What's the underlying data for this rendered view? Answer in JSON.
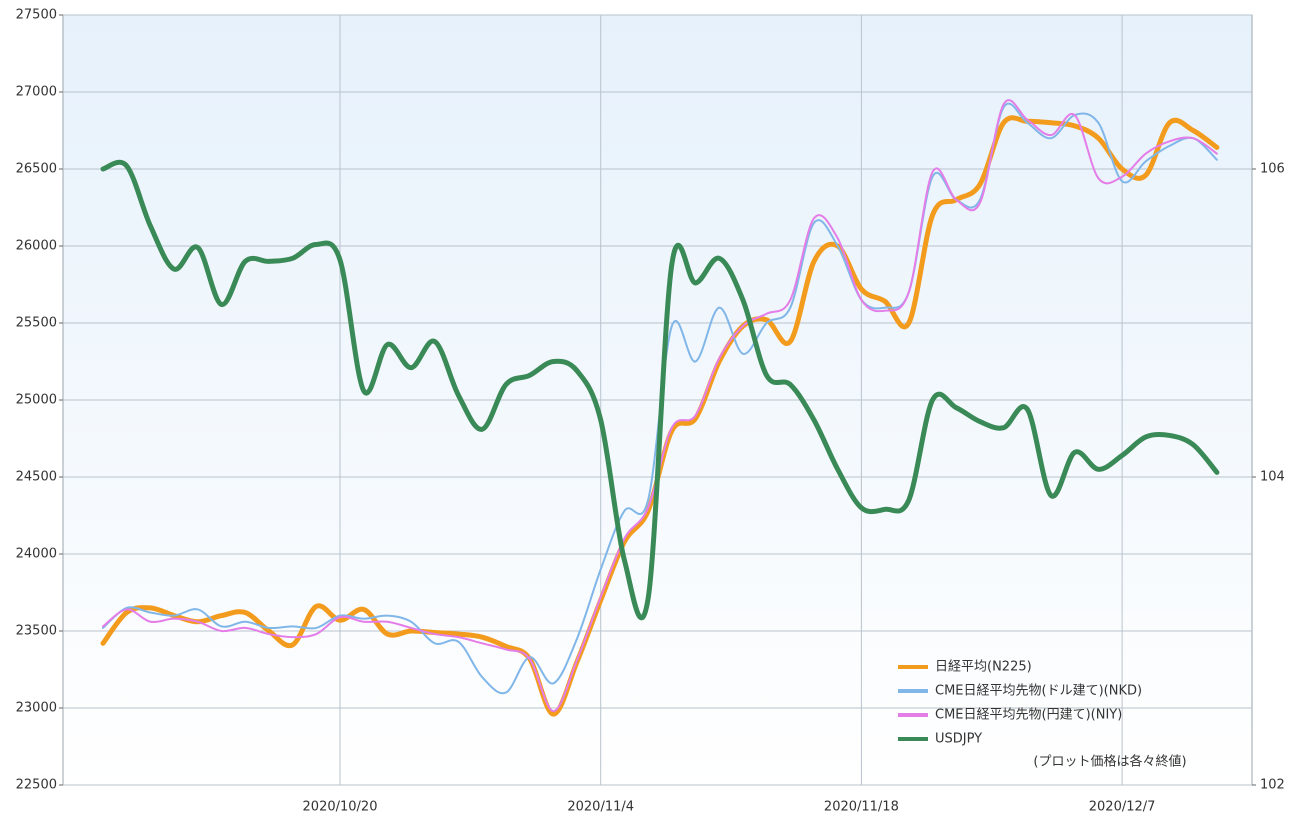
{
  "chart_data": {
    "type": "line",
    "categories": [
      null,
      null,
      null,
      null,
      null,
      null,
      null,
      null,
      null,
      null,
      "2020/10/20",
      null,
      null,
      null,
      null,
      null,
      null,
      null,
      null,
      null,
      null,
      "2020/11/4",
      null,
      null,
      null,
      null,
      null,
      null,
      null,
      null,
      null,
      null,
      "2020/11/18",
      null,
      null,
      null,
      null,
      null,
      null,
      null,
      null,
      null,
      null,
      "2020/12/7",
      null,
      null,
      null,
      null
    ],
    "ylim": [
      22500,
      27500
    ],
    "yticks": [
      22500,
      23000,
      23500,
      24000,
      24500,
      25000,
      25500,
      26000,
      26500,
      27000,
      27500
    ],
    "y2lim": [
      102,
      107
    ],
    "y2ticks": [
      102,
      104,
      106
    ],
    "grid": true,
    "legend": "lower right",
    "note": "(プロット価格は各々終値)",
    "series": [
      {
        "name": "日経平均(N225)",
        "color": "#f29b1d",
        "values": [
          23420,
          23620,
          23650,
          23600,
          23560,
          23600,
          23620,
          23500,
          23410,
          23660,
          23570,
          23640,
          23480,
          23500,
          23490,
          23480,
          23460,
          23400,
          23320,
          22960,
          23300,
          23700,
          24080,
          24280,
          24800,
          24880,
          25250,
          25480,
          25520,
          25380,
          25900,
          26000,
          25720,
          25640,
          25500,
          26200,
          26300,
          26400,
          26800,
          26810,
          26800,
          26780,
          26700,
          26500,
          26460,
          26800,
          26750,
          26640
        ]
      },
      {
        "name": "CME日経平均先物(ドル建て)(NKD)",
        "color": "#80b6e8",
        "values": [
          23520,
          23650,
          23620,
          23600,
          23640,
          23530,
          23560,
          23520,
          23530,
          23520,
          23600,
          23580,
          23600,
          23560,
          23420,
          23430,
          23200,
          23100,
          23330,
          23160,
          23450,
          23900,
          24280,
          24350,
          25480,
          25250,
          25600,
          25300,
          25500,
          25600,
          26150,
          26000,
          25650,
          25600,
          25700,
          26450,
          26300,
          26300,
          26900,
          26800,
          26700,
          26850,
          26800,
          26420,
          26550,
          26650,
          26700,
          26560
        ]
      },
      {
        "name": "CME日経平均先物(円建て)(NIY)",
        "color": "#e47de8",
        "values": [
          23530,
          23640,
          23560,
          23580,
          23560,
          23500,
          23520,
          23480,
          23460,
          23480,
          23590,
          23560,
          23560,
          23520,
          23480,
          23460,
          23420,
          23380,
          23320,
          22980,
          23310,
          23720,
          24100,
          24300,
          24820,
          24900,
          25270,
          25480,
          25560,
          25650,
          26180,
          26050,
          25650,
          25580,
          25700,
          26480,
          26300,
          26280,
          26920,
          26820,
          26720,
          26850,
          26440,
          26450,
          26600,
          26680,
          26700,
          26600
        ]
      },
      {
        "name": "USDJPY",
        "color": "#3a8a57",
        "axis": "y2",
        "values": [
          106.0,
          106.02,
          105.63,
          105.35,
          105.49,
          105.12,
          105.4,
          105.4,
          105.42,
          105.51,
          105.41,
          104.56,
          104.86,
          104.71,
          104.88,
          104.53,
          104.31,
          104.6,
          104.66,
          104.75,
          104.69,
          104.37,
          103.46,
          103.21,
          105.38,
          105.26,
          105.42,
          105.15,
          104.66,
          104.6,
          104.37,
          104.05,
          103.8,
          103.79,
          103.85,
          104.5,
          104.45,
          104.36,
          104.32,
          104.44,
          103.88,
          104.16,
          104.05,
          104.14,
          104.26,
          104.27,
          104.21,
          104.03
        ]
      }
    ]
  }
}
